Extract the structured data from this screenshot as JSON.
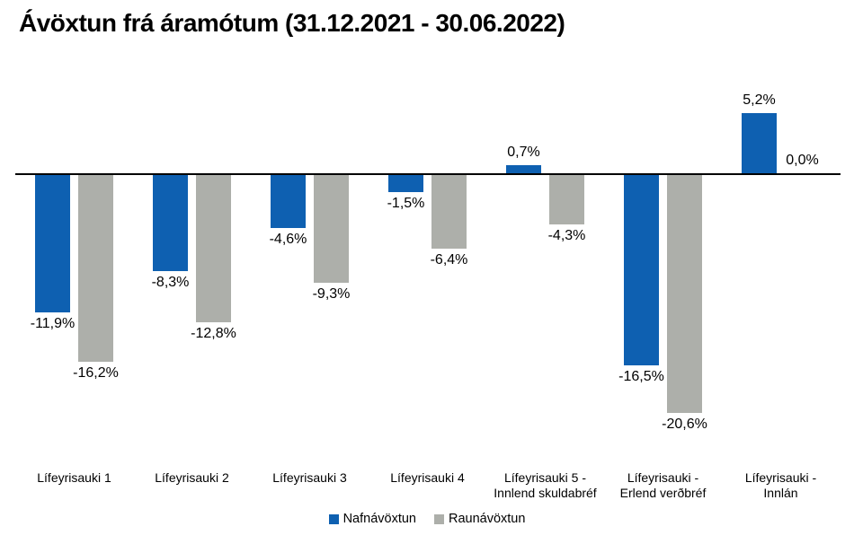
{
  "title": "Ávöxtun frá áramótum (31.12.2021 - 30.06.2022)",
  "chart_data": {
    "type": "bar",
    "title": "Ávöxtun frá áramótum (31.12.2021 - 30.06.2022)",
    "categories": [
      "Lífeyrisauki 1",
      "Lífeyrisauki 2",
      "Lífeyrisauki 3",
      "Lífeyrisauki 4",
      "Lífeyrisauki 5 -\nInnlend skuldabréf",
      "Lífeyrisauki  -\nErlend verðbréf",
      "Lífeyrisauki -\nInnlán"
    ],
    "series": [
      {
        "name": "Nafnávöxtun",
        "color": "#0E60B1",
        "values": [
          -11.9,
          -8.3,
          -4.6,
          -1.5,
          0.7,
          -16.5,
          5.2
        ],
        "labels": [
          "-11,9%",
          "-8,3%",
          "-4,6%",
          "-1,5%",
          "0,7%",
          "-16,5%",
          "5,2%"
        ]
      },
      {
        "name": "Raunávöxtun",
        "color": "#ADAFAA",
        "values": [
          -16.2,
          -12.8,
          -9.3,
          -6.4,
          -4.3,
          -20.6,
          0.0
        ],
        "labels": [
          "-16,2%",
          "-12,8%",
          "-9,3%",
          "-6,4%",
          "-4,3%",
          "-20,6%",
          "0,0%"
        ]
      }
    ],
    "ylim": [
      -22,
      7
    ],
    "xlabel": "",
    "ylabel": "",
    "grid": false,
    "zero_baseline": true,
    "legend_position": "bottom",
    "value_labels_shown": true,
    "decimal_separator": ","
  }
}
